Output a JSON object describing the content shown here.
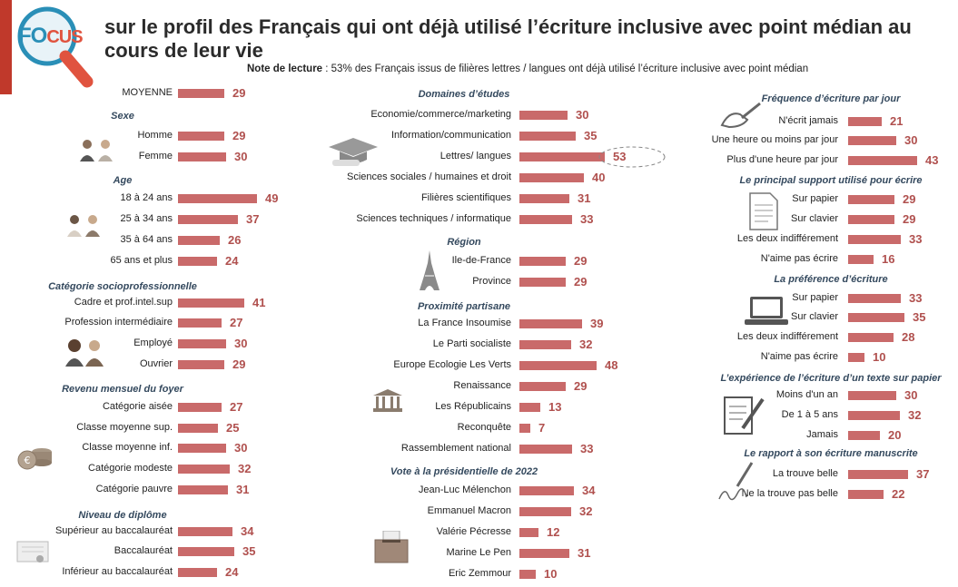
{
  "header": {
    "logo_fo": "FO",
    "logo_cus": "CUS",
    "title": "sur le profil des Français qui ont déjà utilisé l’écriture inclusive avec point médian au cours de leur vie",
    "note_label": "Note de lecture",
    "note_text": " : 53% des Français issus de filières lettres / langues ont déjà utilisé l’écriture inclusive avec point médian"
  },
  "colors": {
    "bar": "#c96a6a",
    "value": "#b0504e",
    "section_title": "#34495e",
    "accent": "#c0392b"
  },
  "chart_data": {
    "type": "bar",
    "orientation": "horizontal",
    "unit": "%",
    "xlim": [
      0,
      50
    ],
    "columns": [
      {
        "groups": [
          {
            "title": "",
            "items": [
              {
                "label": "MOYENNE",
                "value": 29
              }
            ]
          },
          {
            "title": "Sexe",
            "icon": "people-icon",
            "items": [
              {
                "label": "Homme",
                "value": 29
              },
              {
                "label": "Femme",
                "value": 30
              }
            ]
          },
          {
            "title": "Age",
            "icon": "people-icon",
            "items": [
              {
                "label": "18 à 24 ans",
                "value": 49
              },
              {
                "label": "25 à 34 ans",
                "value": 37
              },
              {
                "label": "35 à 64 ans",
                "value": 26
              },
              {
                "label": "65 ans et plus",
                "value": 24
              }
            ]
          },
          {
            "title": "Catégorie socioprofessionnelle",
            "icon": "workers-icon",
            "items": [
              {
                "label": "Cadre et prof.intel.sup",
                "value": 41
              },
              {
                "label": "Profession intermédiaire",
                "value": 27
              },
              {
                "label": "Employé",
                "value": 30
              },
              {
                "label": "Ouvrier",
                "value": 29
              }
            ]
          },
          {
            "title": "Revenu mensuel du foyer",
            "icon": "coins-icon",
            "items": [
              {
                "label": "Catégorie aisée",
                "value": 27
              },
              {
                "label": "Classe moyenne sup.",
                "value": 25
              },
              {
                "label": "Classe moyenne inf.",
                "value": 30
              },
              {
                "label": "Catégorie modeste",
                "value": 32
              },
              {
                "label": "Catégorie pauvre",
                "value": 31
              }
            ]
          },
          {
            "title": "Niveau de diplôme",
            "icon": "diploma-icon",
            "items": [
              {
                "label": "Supérieur au baccalauréat",
                "value": 34
              },
              {
                "label": "Baccalauréat",
                "value": 35
              },
              {
                "label": "Inférieur au baccalauréat",
                "value": 24
              }
            ]
          }
        ]
      },
      {
        "groups": [
          {
            "title": "Domaines d’études",
            "icon": "graduation-cap-icon",
            "items": [
              {
                "label": "Economie/commerce/marketing",
                "value": 30
              },
              {
                "label": "Information/communication",
                "value": 35
              },
              {
                "label": "Lettres/ langues",
                "value": 53,
                "highlight": true
              },
              {
                "label": "Sciences sociales / humaines et droit",
                "value": 40
              },
              {
                "label": "Filières scientifiques",
                "value": 31
              },
              {
                "label": "Sciences techniques / informatique",
                "value": 33
              }
            ]
          },
          {
            "title": "Région",
            "icon": "eiffel-tower-icon",
            "items": [
              {
                "label": "Ile-de-France",
                "value": 29
              },
              {
                "label": "Province",
                "value": 29
              }
            ]
          },
          {
            "title": "Proximité partisane",
            "icon": "parliament-icon",
            "items": [
              {
                "label": "La France Insoumise",
                "value": 39
              },
              {
                "label": "Le Parti socialiste",
                "value": 32
              },
              {
                "label": "Europe Ecologie Les Verts",
                "value": 48
              },
              {
                "label": "Renaissance",
                "value": 29
              },
              {
                "label": "Les Républicains",
                "value": 13
              },
              {
                "label": "Reconquête",
                "value": 7
              },
              {
                "label": "Rassemblement national",
                "value": 33
              }
            ]
          },
          {
            "title": "Vote à la présidentielle de 2022",
            "icon": "ballot-box-icon",
            "items": [
              {
                "label": "Jean-Luc Mélenchon",
                "value": 34
              },
              {
                "label": "Emmanuel Macron",
                "value": 32
              },
              {
                "label": "Valérie Pécresse",
                "value": 12
              },
              {
                "label": "Marine Le Pen",
                "value": 31
              },
              {
                "label": "Eric Zemmour",
                "value": 10
              }
            ]
          }
        ]
      },
      {
        "groups": [
          {
            "title": "Fréquence d’écriture par jour",
            "icon": "writing-hand-icon",
            "items": [
              {
                "label": "N'écrit jamais",
                "value": 21
              },
              {
                "label": "Une heure ou moins par jour",
                "value": 30
              },
              {
                "label": "Plus d'une heure par jour",
                "value": 43
              }
            ]
          },
          {
            "title": "Le principal support utilisé pour écrire",
            "icon": "document-icon",
            "items": [
              {
                "label": "Sur papier",
                "value": 29
              },
              {
                "label": "Sur clavier",
                "value": 29
              },
              {
                "label": "Les deux indifférement",
                "value": 33
              },
              {
                "label": "N'aime pas écrire",
                "value": 16
              }
            ]
          },
          {
            "title": "La préférence d’écriture",
            "icon": "laptop-icon",
            "items": [
              {
                "label": "Sur papier",
                "value": 33
              },
              {
                "label": "Sur clavier",
                "value": 35
              },
              {
                "label": "Les deux indifférement",
                "value": 28
              },
              {
                "label": "N'aime pas écrire",
                "value": 10
              }
            ]
          },
          {
            "title": "L’expérience de l’écriture d’un texte sur papier",
            "icon": "form-pen-icon",
            "items": [
              {
                "label": "Moins d'un an",
                "value": 30
              },
              {
                "label": "De 1 à 5 ans",
                "value": 32
              },
              {
                "label": "Jamais",
                "value": 20
              }
            ]
          },
          {
            "title": "Le rapport à son écriture manuscrite",
            "icon": "signature-icon",
            "items": [
              {
                "label": "La trouve belle",
                "value": 37
              },
              {
                "label": "Ne la trouve pas belle",
                "value": 22
              }
            ]
          }
        ]
      }
    ]
  }
}
